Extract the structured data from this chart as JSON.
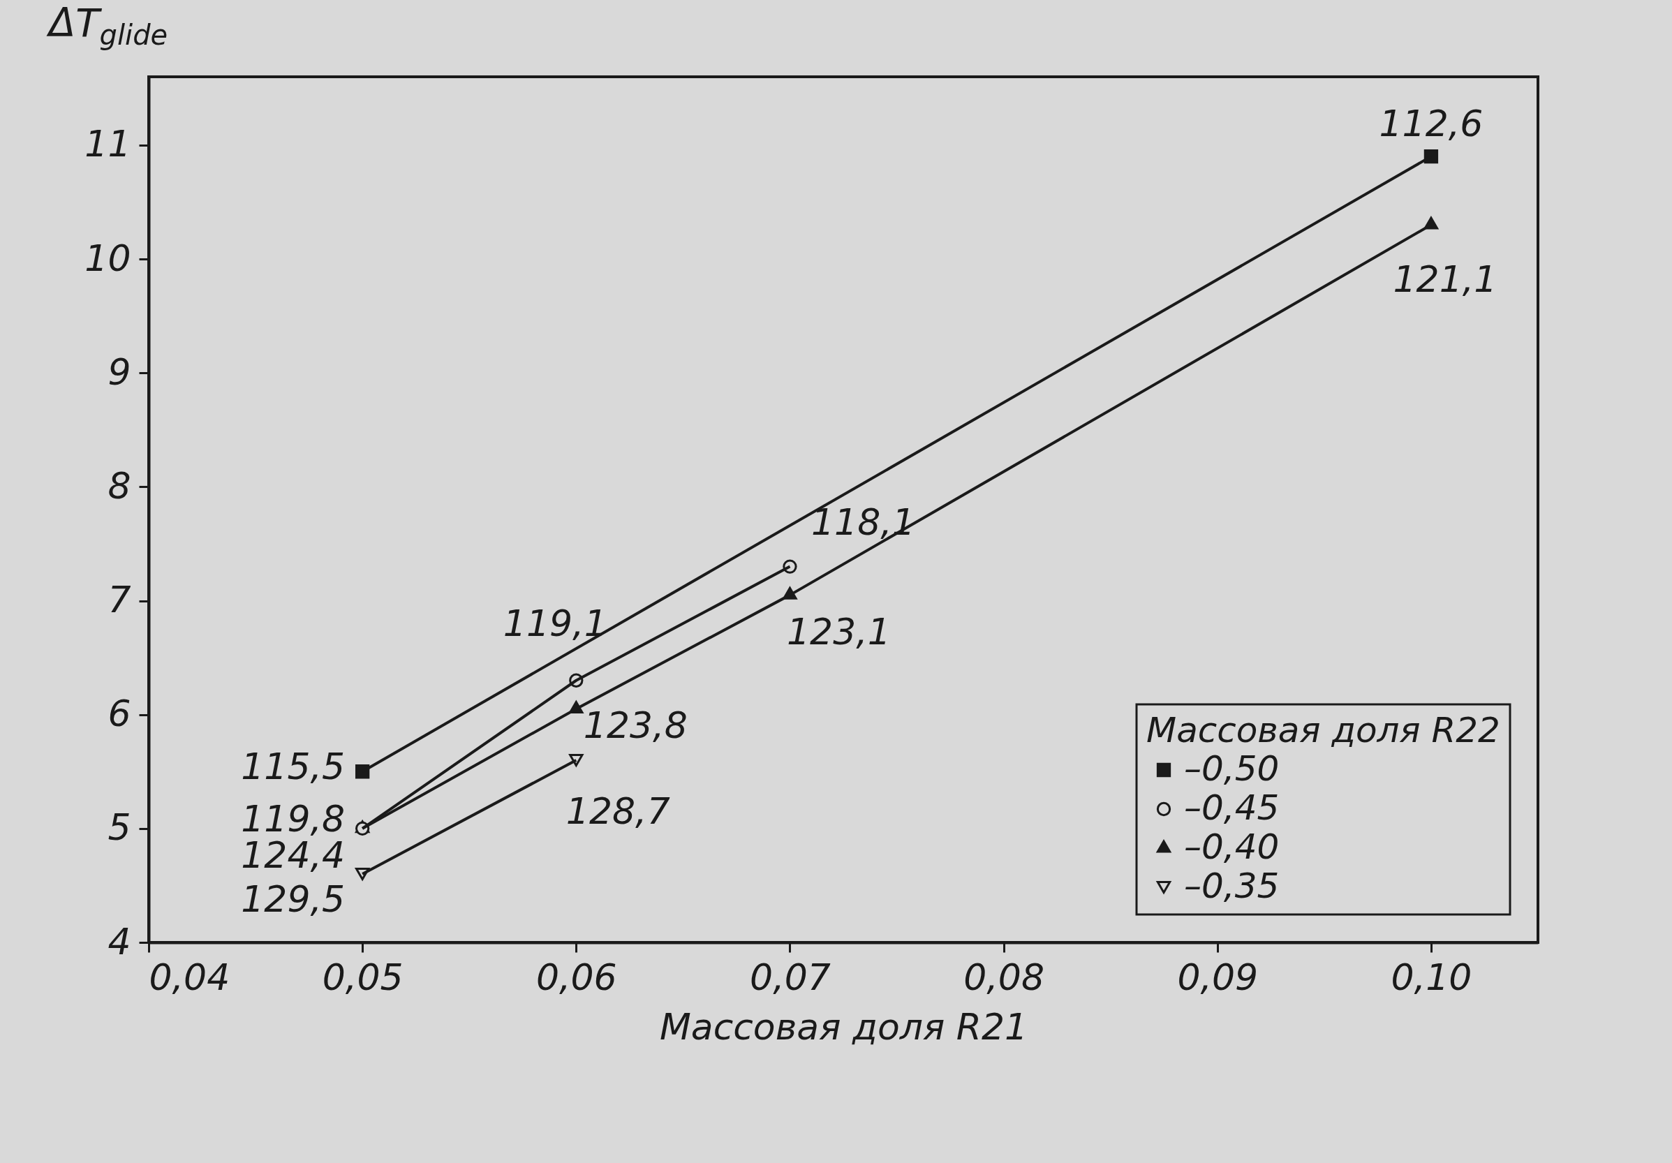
{
  "chart_data": {
    "type": "line",
    "xlabel": "Массовая доля R21",
    "ylabel": "ΔT$_{glide}$",
    "legend_title": "Массовая доля R22",
    "legend": "bottom right",
    "grid": false,
    "line_style": "solid",
    "xlim": [
      0.04,
      0.105
    ],
    "xticks": [
      {
        "value": 0.04,
        "label": "0,04"
      },
      {
        "value": 0.05,
        "label": "0,05"
      },
      {
        "value": 0.06,
        "label": "0,06"
      },
      {
        "value": 0.07,
        "label": "0,07"
      },
      {
        "value": 0.08,
        "label": "0,08"
      },
      {
        "value": 0.09,
        "label": "0,09"
      },
      {
        "value": 0.1,
        "label": "0,10"
      }
    ],
    "ylim": [
      4,
      11.6
    ],
    "yticks": [
      4,
      5,
      6,
      7,
      8,
      9,
      10,
      11
    ],
    "series": [
      {
        "name": "–0,50",
        "color": "#1a1a1a",
        "marker": "square",
        "x": [
          0.05,
          0.1
        ],
        "values": [
          5.5,
          10.9
        ]
      },
      {
        "name": "–0,45",
        "color": "#1a1a1a",
        "marker": "circle",
        "x": [
          0.05,
          0.06,
          0.07
        ],
        "values": [
          5.0,
          6.3,
          7.3
        ]
      },
      {
        "name": "–0,40",
        "color": "#1a1a1a",
        "marker": "triangle",
        "x": [
          0.05,
          0.06,
          0.07,
          0.1
        ],
        "values": [
          5.0,
          6.05,
          7.05,
          10.3
        ]
      },
      {
        "name": "–0,35",
        "color": "#1a1a1a",
        "marker": "triangle-down",
        "x": [
          0.05,
          0.06
        ],
        "values": [
          4.6,
          5.6
        ]
      }
    ],
    "annotations": [
      {
        "text": "112,6",
        "x": 0.1,
        "y": 10.9
      },
      {
        "text": "115,5",
        "x": 0.05,
        "y": 5.5
      },
      {
        "text": "119,8",
        "x": 0.05,
        "y": 5.0
      },
      {
        "text": "124,4",
        "x": 0.05,
        "y": 5.0
      },
      {
        "text": "129,5",
        "x": 0.05,
        "y": 4.6
      },
      {
        "text": "119,1",
        "x": 0.06,
        "y": 6.3
      },
      {
        "text": "118,1",
        "x": 0.07,
        "y": 7.3
      },
      {
        "text": "123,8",
        "x": 0.06,
        "y": 6.05
      },
      {
        "text": "123,1",
        "x": 0.07,
        "y": 7.05
      },
      {
        "text": "128,7",
        "x": 0.06,
        "y": 5.6
      },
      {
        "text": "121,1",
        "x": 0.1,
        "y": 10.3
      }
    ]
  }
}
